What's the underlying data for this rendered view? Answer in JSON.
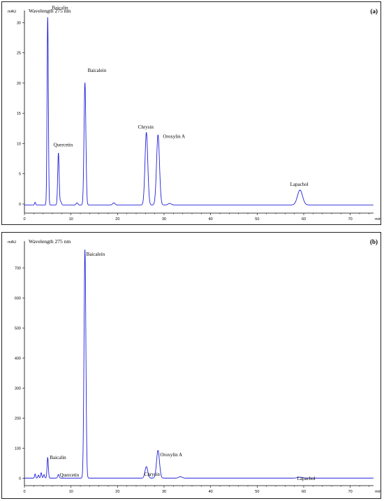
{
  "chart_data": [
    {
      "type": "line",
      "panel_label": "(a)",
      "wavelength_label": "Wavelength  275 nm",
      "ylabel": "mAU",
      "xlabel": "min",
      "xlim": [
        0,
        75
      ],
      "ylim": [
        -1.5,
        32
      ],
      "x_ticks": [
        0,
        10,
        20,
        30,
        40,
        50,
        60,
        70
      ],
      "y_ticks": [
        0,
        5,
        10,
        15,
        20,
        25,
        30
      ],
      "peaks": [
        {
          "name": "Baicalin",
          "x": 5.0,
          "y": 30.8
        },
        {
          "name": "Quercetin",
          "x": 7.3,
          "y": 8.4
        },
        {
          "name": "Baicalein",
          "x": 13.0,
          "y": 20.0
        },
        {
          "name": "Chrysin",
          "x": 26.2,
          "y": 11.8
        },
        {
          "name": "Oroxylin  A",
          "x": 28.7,
          "y": 11.4
        },
        {
          "name": "Lapachol",
          "x": 59.2,
          "y": 2.3
        }
      ],
      "minor_peaks": [
        {
          "x": 2.3,
          "y": 0.3
        },
        {
          "x": 7.8,
          "y": 0.4
        },
        {
          "x": 11.3,
          "y": 0.2
        },
        {
          "x": 19.2,
          "y": 0.2
        },
        {
          "x": 31.2,
          "y": 0.1
        }
      ],
      "baseline": -0.15
    },
    {
      "type": "line",
      "panel_label": "(b)",
      "wavelength_label": "Wavelength 275 nm",
      "ylabel": "mAU",
      "xlabel": "min",
      "xlim": [
        0,
        75
      ],
      "ylim": [
        -25,
        790
      ],
      "x_ticks": [
        0,
        10,
        20,
        30,
        40,
        50,
        60,
        70
      ],
      "y_ticks": [
        0,
        100,
        200,
        300,
        400,
        500,
        600,
        700
      ],
      "peaks": [
        {
          "name": "Baicalin",
          "x": 5.0,
          "y": 68
        },
        {
          "name": "Quercetin",
          "x": 7.3,
          "y": 12
        },
        {
          "name": "Baicalein",
          "x": 13.0,
          "y": 760
        },
        {
          "name": "Chrysin",
          "x": 26.2,
          "y": 38
        },
        {
          "name": "Oroxylin A",
          "x": 28.7,
          "y": 92
        },
        {
          "name": "Lapachol",
          "x": 59.2,
          "y": 3
        }
      ],
      "minor_peaks": [
        {
          "x": 2.3,
          "y": 14
        },
        {
          "x": 3.0,
          "y": 10
        },
        {
          "x": 3.6,
          "y": 18
        },
        {
          "x": 4.2,
          "y": 12
        },
        {
          "x": 33.5,
          "y": 5
        }
      ],
      "baseline": 0
    }
  ]
}
